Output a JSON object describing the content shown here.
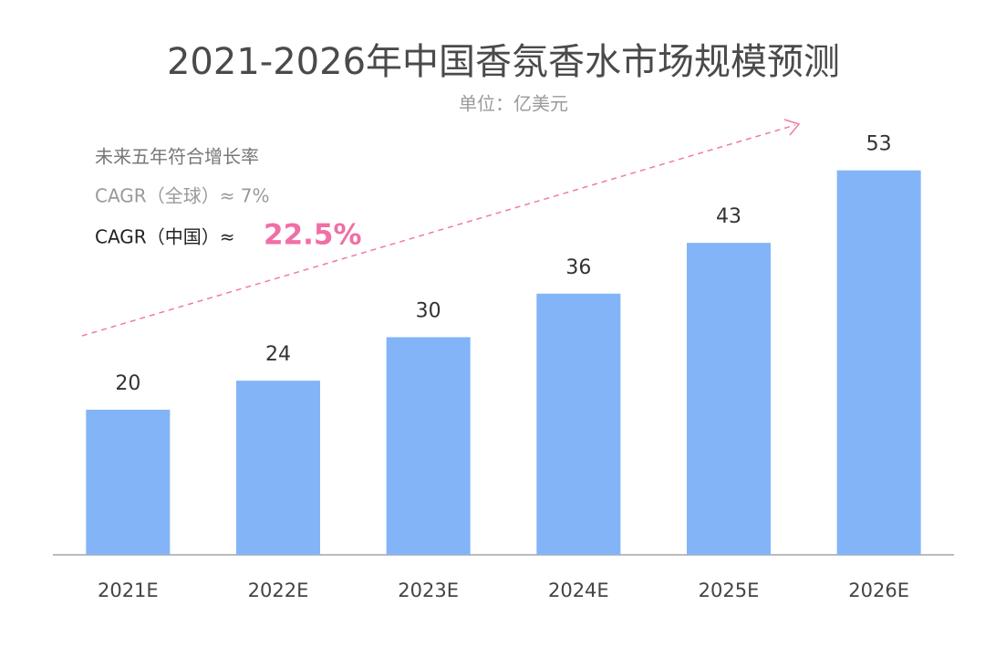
{
  "chart_data": {
    "type": "bar",
    "title": "2021-2026年中国香氛香水市场规模预测",
    "subtitle": "单位：亿美元",
    "categories": [
      "2021E",
      "2022E",
      "2023E",
      "2024E",
      "2025E",
      "2026E"
    ],
    "values": [
      20,
      24,
      30,
      36,
      43,
      53
    ],
    "color": "#82b4f7",
    "ylim": [
      0,
      60
    ],
    "annotations": [
      "未来五年符合增长率",
      "CAGR（全球）≈ 7%",
      "CAGR（中国）≈",
      "22.5%"
    ]
  }
}
